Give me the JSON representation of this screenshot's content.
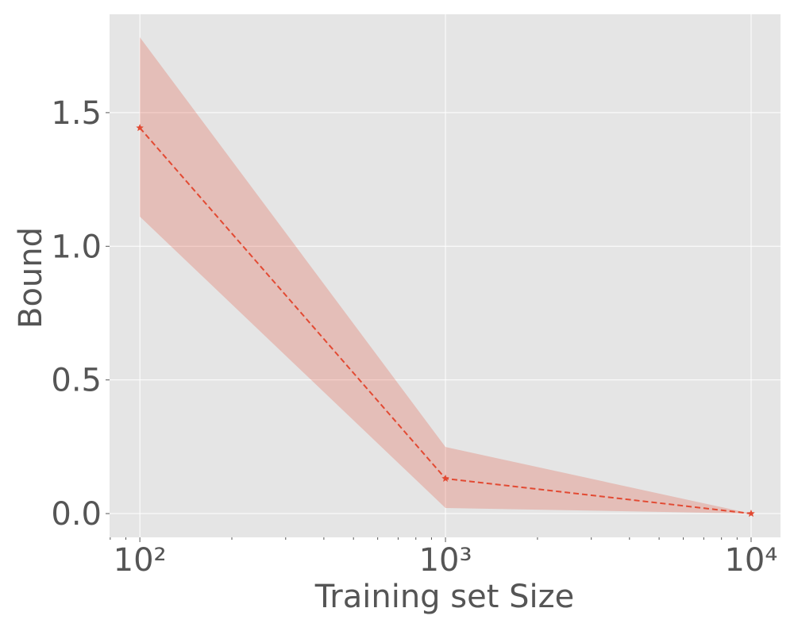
{
  "chart_data": {
    "type": "line",
    "xlabel": "Training set Size",
    "ylabel": "Bound",
    "x": [
      100,
      1000,
      10000
    ],
    "series": [
      {
        "color": "#e24a33",
        "values": [
          1.443,
          0.131,
          0.0
        ],
        "lower": [
          1.111,
          0.021,
          0.0
        ],
        "upper": [
          1.782,
          0.249,
          0.0
        ]
      }
    ],
    "xscale": "log",
    "xlim": [
      79.6,
      12480
    ],
    "xticks": [
      {
        "value": 100,
        "label": "10²"
      },
      {
        "value": 1000,
        "label": "10³"
      },
      {
        "value": 10000,
        "label": "10⁴"
      }
    ],
    "xminorticks": [
      80,
      90,
      200,
      300,
      400,
      500,
      600,
      700,
      800,
      900,
      2000,
      3000,
      4000,
      5000,
      6000,
      7000,
      8000,
      9000
    ],
    "ylim": [
      -0.089,
      1.868
    ],
    "yticks": [
      {
        "value": 0,
        "label": "0.0"
      },
      0.5,
      {
        "value": 1,
        "label": "1.0"
      },
      1.5
    ],
    "grid": true
  }
}
